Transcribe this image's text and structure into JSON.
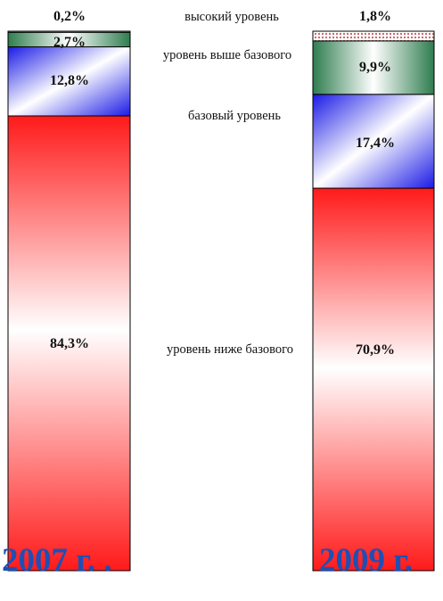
{
  "chart_data": {
    "type": "bar",
    "stacked": true,
    "percent": true,
    "categories": [
      "2007 г. .",
      "2009 г."
    ],
    "series": [
      {
        "name": "уровень ниже базового",
        "values": [
          84.3,
          70.9
        ],
        "labels": [
          "84,3%",
          "70,9%"
        ],
        "color": "#ff1a1a"
      },
      {
        "name": "базовый уровень",
        "values": [
          12.8,
          17.4
        ],
        "labels": [
          "12,8%",
          "17,4%"
        ],
        "color": "#2020e6"
      },
      {
        "name": "уровень выше базового",
        "values": [
          2.7,
          9.9
        ],
        "labels": [
          "2,7%",
          "9,9%"
        ],
        "color": "#2e7d4f"
      },
      {
        "name": "высокий уровень",
        "values": [
          0.2,
          1.8
        ],
        "labels": [
          "0,2%",
          "1,8%"
        ],
        "color": "#e08080"
      }
    ],
    "ylim": [
      0,
      100
    ],
    "legend": "center, between bars"
  }
}
